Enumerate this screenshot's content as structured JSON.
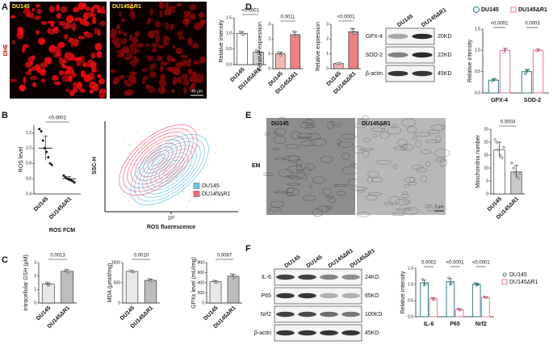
{
  "figure": {
    "panel_labels": [
      "A",
      "B",
      "C",
      "D",
      "E",
      "F"
    ],
    "a": {
      "images": [
        "DU145",
        "DU145ΔR1"
      ],
      "stain": "DHE",
      "scale": "40 μm"
    },
    "b_flow": {
      "ylabel": "SSC-H",
      "xlabel": "ROS fluorescence",
      "xtick": "10²",
      "legend": [
        {
          "name": "DU145",
          "color": "#6ec6e6"
        },
        {
          "name": "DU145ΔR1",
          "color": "#f06a7e"
        }
      ]
    },
    "d_blot": {
      "lanes": [
        "DU145",
        "DU145ΔR1"
      ],
      "rows": [
        "GPX-4",
        "SOD-2",
        "β-actin"
      ],
      "sizes": [
        "20KD",
        "22KD",
        "45KD"
      ]
    },
    "e": {
      "images": [
        "DU145",
        "DU145ΔR1"
      ],
      "method": "EM",
      "scale": "2 μm"
    },
    "f_blot": {
      "lanes": [
        "DU145",
        "DU145",
        "DU145ΔR1",
        "DU145ΔR1"
      ],
      "rows": [
        "IL-6",
        "P65",
        "Nrf2",
        "β-actin"
      ],
      "sizes": [
        "24KD",
        "65KD",
        "100KD",
        "45KD"
      ]
    }
  },
  "chart_data": [
    {
      "type": "bar",
      "ylabel": "Relative intensity",
      "categories": [
        "DU145",
        "DU145ΔR1"
      ],
      "values": [
        1.0,
        0.4
      ],
      "errors": [
        0.05,
        0.06
      ],
      "points": [
        [
          1.05,
          0.98,
          0.97
        ],
        [
          0.46,
          0.36,
          0.38
        ]
      ],
      "colors": [
        "#ffffff",
        "#cfcfcf"
      ],
      "ylim": [
        0,
        1.5
      ],
      "yticks": [
        {
          "value": 0,
          "label": "0.0"
        },
        0.5,
        {
          "value": 1,
          "label": "1.0"
        },
        1.5
      ],
      "annotation": "<0.0001"
    },
    {
      "type": "bar",
      "ylabel": "Relative expression",
      "categories": [
        "DU145",
        "DU145ΔR1"
      ],
      "values": [
        1.0,
        2.3
      ],
      "errors": [
        0.12,
        0.2
      ],
      "points": [
        [
          1.1,
          0.9,
          1.0
        ],
        [
          2.5,
          2.2,
          2.2
        ]
      ],
      "colors": [
        "#f5b7b1",
        "#f08080"
      ],
      "ylim": [
        0,
        3
      ],
      "yticks": [
        0,
        1,
        2,
        3
      ],
      "annotation": "0.0011"
    },
    {
      "type": "bar",
      "ylabel": "Relative expression",
      "categories": [
        "DU145",
        "DU145ΔR1"
      ],
      "values": [
        0.35,
        2.5
      ],
      "errors": [
        0.04,
        0.2
      ],
      "points": [
        [
          0.32,
          0.36,
          0.37
        ],
        [
          2.7,
          2.4,
          2.4
        ]
      ],
      "colors": [
        "#f5b7b1",
        "#f08080"
      ],
      "ylim": [
        0,
        3
      ],
      "yticks": [
        0,
        1,
        2,
        3
      ],
      "annotation": "<0.0001"
    },
    {
      "type": "grouped_bar",
      "ylabel": "Relative intensity",
      "legend": "top",
      "categories": [
        "GPX-4",
        "SOD-2"
      ],
      "series": [
        {
          "name": "DU145",
          "color": "#2e7d8a",
          "values": [
            0.3,
            0.5
          ],
          "errors": [
            0.03,
            0.05
          ],
          "points": [
            [
              0.28,
              0.31,
              0.32
            ],
            [
              0.45,
              0.52,
              0.54
            ]
          ]
        },
        {
          "name": "DU145ΔR1",
          "color": "#e07a9a",
          "values": [
            1.0,
            1.0
          ],
          "errors": [
            0.05,
            0.03
          ],
          "points": [
            [
              0.95,
              1.03,
              1.02
            ],
            [
              0.98,
              1.01,
              1.01
            ]
          ]
        }
      ],
      "ylim": [
        0,
        1.5
      ],
      "yticks": [
        {
          "value": 0,
          "label": "0.0"
        },
        0.5,
        {
          "value": 1,
          "label": "1.0"
        },
        1.5
      ],
      "annotations": [
        "<0.0001",
        "0.0003"
      ]
    },
    {
      "type": "dot",
      "ylabel": "ROS level",
      "xlabel": "ROS FCM",
      "categories": [
        "DU145",
        "DU145ΔR1"
      ],
      "values": [
        1.0,
        0.6
      ],
      "errors": [
        0.16,
        0.03
      ],
      "points": [
        [
          1.25,
          1.22,
          1.1,
          1.0,
          0.95,
          0.88,
          0.8,
          0.78
        ],
        [
          0.64,
          0.62,
          0.6,
          0.59,
          0.58,
          0.57,
          0.55
        ]
      ],
      "ylim": [
        0.4,
        1.3
      ],
      "yticks": [
        0.4,
        0.6,
        0.8,
        {
          "value": 1,
          "label": "1.0"
        },
        1.2
      ],
      "annotation": "<0.0001"
    },
    {
      "type": "bar",
      "ylabel": "Mitochondria number",
      "categories": [
        "DU145",
        "DU145ΔR1"
      ],
      "values": [
        17,
        8.5
      ],
      "errors": [
        3,
        2.5
      ],
      "points": [
        [
          21,
          20,
          17,
          15,
          14,
          18
        ],
        [
          12,
          10,
          8,
          7,
          6,
          8
        ]
      ],
      "colors": [
        "#ffffff",
        "#c9c9c9"
      ],
      "ylim": [
        0,
        25
      ],
      "yticks": [
        0,
        5,
        10,
        15,
        20,
        25
      ],
      "annotation": "0.0003"
    },
    {
      "type": "bar",
      "ylabel": "Intracellular GSH (μM)",
      "categories": [
        "DU145",
        "DU145ΔR1"
      ],
      "values": [
        1.4,
        2.35
      ],
      "errors": [
        0.1,
        0.12
      ],
      "points": [
        [
          1.5,
          1.3,
          1.4
        ],
        [
          2.45,
          2.3,
          2.3
        ]
      ],
      "colors": [
        "#e8e8e8",
        "#bdbdbd"
      ],
      "ylim": [
        0,
        3
      ],
      "yticks": [
        0,
        1,
        2,
        3
      ],
      "annotation": "0.0013"
    },
    {
      "type": "bar",
      "ylabel": "MDA (μmol/mg)",
      "categories": [
        "DU145",
        "DU145ΔR1"
      ],
      "values": [
        780,
        560
      ],
      "errors": [
        20,
        30
      ],
      "points": [
        [
          800,
          770,
          770
        ],
        [
          590,
          540,
          550
        ]
      ],
      "colors": [
        "#e8e8e8",
        "#bdbdbd"
      ],
      "ylim": [
        0,
        1000
      ],
      "yticks": [
        0,
        500,
        1000
      ],
      "annotation": "0.0010"
    },
    {
      "type": "bar",
      "ylabel": "GPXs level (mU/mg)",
      "categories": [
        "DU145",
        "DU145ΔR1"
      ],
      "values": [
        420,
        530
      ],
      "errors": [
        20,
        40
      ],
      "points": [
        [
          440,
          410,
          410
        ],
        [
          570,
          500,
          520
        ]
      ],
      "colors": [
        "#e8e8e8",
        "#bdbdbd"
      ],
      "ylim": [
        0,
        800
      ],
      "yticks": [
        0,
        200,
        400,
        600,
        800
      ],
      "annotation": "0.0087"
    },
    {
      "type": "grouped_bar",
      "ylabel": "Relative intensity",
      "legend": "right",
      "categories": [
        "IL-6",
        "P65",
        "Nrf2"
      ],
      "series": [
        {
          "name": "DU145",
          "color": "#2e7d8a",
          "values": [
            1.05,
            1.08,
            1.0
          ],
          "errors": [
            0.08,
            0.1,
            0.04
          ],
          "points": [
            [
              1.15,
              0.98,
              1.02
            ],
            [
              1.2,
              1.0,
              1.05
            ],
            [
              1.03,
              0.98,
              0.99
            ]
          ]
        },
        {
          "name": "DU145ΔR1",
          "color": "#e07a9a",
          "values": [
            0.55,
            0.22,
            0.6
          ],
          "errors": [
            0.04,
            0.03,
            0.02
          ],
          "points": [
            [
              0.58,
              0.52,
              0.55
            ],
            [
              0.24,
              0.2,
              0.22
            ],
            [
              0.62,
              0.59,
              0.6
            ]
          ]
        }
      ],
      "ylim": [
        0,
        1.5
      ],
      "yticks": [
        {
          "value": 0,
          "label": "0.0"
        },
        0.5,
        {
          "value": 1,
          "label": "1.0"
        },
        1.5
      ],
      "annotations": [
        "0.0002",
        "<0.0001",
        "<0.0001"
      ]
    }
  ]
}
